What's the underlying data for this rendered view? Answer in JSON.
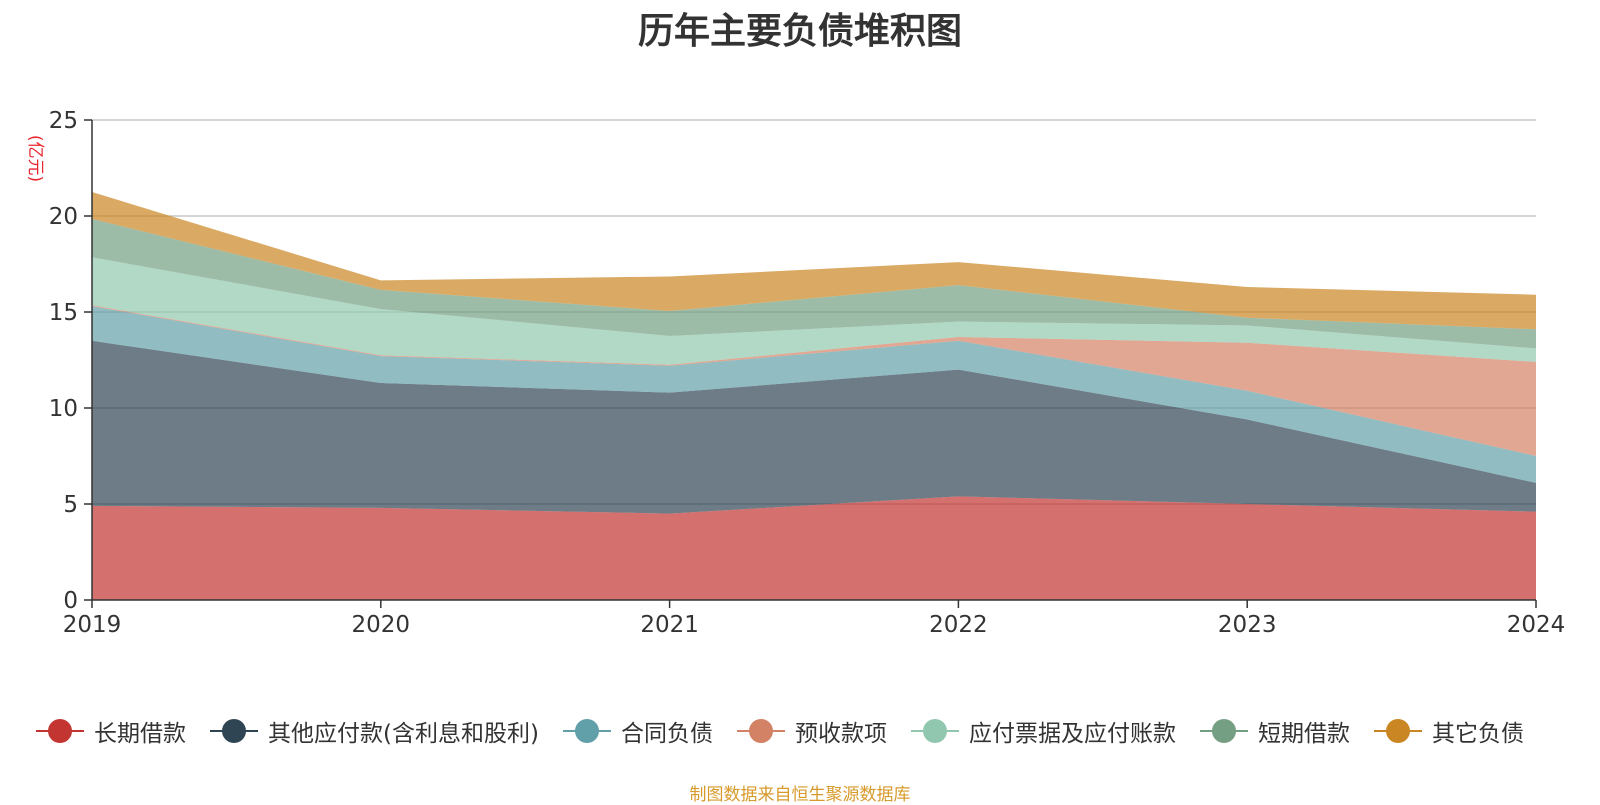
{
  "title": "历年主要负债堆积图",
  "source_note": "制图数据来自恒生聚源数据库",
  "chart_data": {
    "type": "area",
    "stacked": true,
    "title": "历年主要负债堆积图",
    "ylabel": "(亿元)",
    "xlabel": "",
    "x": [
      "2019",
      "2020",
      "2021",
      "2022",
      "2023",
      "2024"
    ],
    "ylim": [
      0,
      25
    ],
    "yticks": [
      0,
      5,
      10,
      15,
      20,
      25
    ],
    "grid": true,
    "legend_position": "bottom",
    "series": [
      {
        "name": "长期借款",
        "color": "#c23531",
        "values": [
          4.9,
          4.8,
          4.5,
          5.4,
          5.0,
          4.6
        ]
      },
      {
        "name": "其他应付款(含利息和股利)",
        "color": "#2f4554",
        "values": [
          8.6,
          6.5,
          6.3,
          6.6,
          4.4,
          1.5
        ]
      },
      {
        "name": "合同负债",
        "color": "#61a0a8",
        "values": [
          1.8,
          1.4,
          1.4,
          1.5,
          1.5,
          1.4
        ]
      },
      {
        "name": "预收款项",
        "color": "#d48265",
        "values": [
          0.05,
          0.05,
          0.05,
          0.2,
          2.5,
          4.9
        ]
      },
      {
        "name": "应付票据及应付账款",
        "color": "#91c7ae",
        "values": [
          2.5,
          2.4,
          1.5,
          0.8,
          0.9,
          0.7
        ]
      },
      {
        "name": "短期借款",
        "color": "#749f83",
        "values": [
          2.0,
          1.0,
          1.3,
          1.9,
          0.4,
          1.0
        ]
      },
      {
        "name": "其它负债",
        "color": "#ca8622",
        "values": [
          1.4,
          0.5,
          1.8,
          1.2,
          1.6,
          1.8
        ]
      }
    ]
  }
}
